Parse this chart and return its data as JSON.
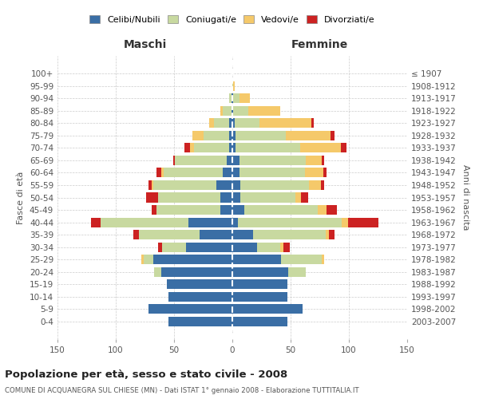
{
  "age_groups": [
    "100+",
    "95-99",
    "90-94",
    "85-89",
    "80-84",
    "75-79",
    "70-74",
    "65-69",
    "60-64",
    "55-59",
    "50-54",
    "45-49",
    "40-44",
    "35-39",
    "30-34",
    "25-29",
    "20-24",
    "15-19",
    "10-14",
    "5-9",
    "0-4"
  ],
  "birth_years": [
    "≤ 1907",
    "1908-1912",
    "1913-1917",
    "1918-1922",
    "1923-1927",
    "1928-1932",
    "1933-1937",
    "1938-1942",
    "1943-1947",
    "1948-1952",
    "1953-1957",
    "1958-1962",
    "1963-1967",
    "1968-1972",
    "1973-1977",
    "1978-1982",
    "1983-1987",
    "1988-1992",
    "1993-1997",
    "1998-2002",
    "2003-2007"
  ],
  "colors": {
    "celibe": "#3a6ea5",
    "coniugato": "#c8d9a0",
    "vedovo": "#f5c96a",
    "divorziato": "#cc2222"
  },
  "maschi": {
    "celibe": [
      0,
      0,
      1,
      1,
      3,
      3,
      3,
      5,
      8,
      14,
      10,
      10,
      38,
      28,
      40,
      68,
      61,
      56,
      55,
      72,
      55
    ],
    "coniugato": [
      0,
      0,
      2,
      7,
      13,
      22,
      30,
      44,
      51,
      54,
      54,
      55,
      75,
      52,
      20,
      8,
      6,
      0,
      0,
      0,
      0
    ],
    "vedovo": [
      0,
      0,
      0,
      2,
      4,
      9,
      3,
      0,
      2,
      1,
      0,
      0,
      0,
      0,
      0,
      2,
      0,
      0,
      0,
      0,
      0
    ],
    "divorziato": [
      0,
      0,
      0,
      0,
      0,
      0,
      5,
      2,
      4,
      3,
      10,
      4,
      8,
      5,
      4,
      0,
      0,
      0,
      0,
      0,
      0
    ]
  },
  "femmine": {
    "nubile": [
      0,
      0,
      1,
      1,
      2,
      3,
      3,
      6,
      6,
      7,
      7,
      10,
      5,
      18,
      21,
      42,
      48,
      47,
      47,
      60,
      47
    ],
    "coniugata": [
      0,
      1,
      5,
      13,
      21,
      43,
      55,
      57,
      56,
      59,
      47,
      63,
      89,
      62,
      20,
      35,
      15,
      0,
      0,
      0,
      0
    ],
    "vedova": [
      0,
      1,
      9,
      27,
      45,
      38,
      35,
      14,
      16,
      10,
      5,
      8,
      5,
      3,
      3,
      2,
      0,
      0,
      0,
      0,
      0
    ],
    "divorziata": [
      0,
      0,
      0,
      0,
      2,
      4,
      5,
      2,
      3,
      3,
      6,
      9,
      26,
      5,
      5,
      0,
      0,
      0,
      0,
      0,
      0
    ]
  },
  "xlim": 150,
  "title": "Popolazione per età, sesso e stato civile - 2008",
  "subtitle": "COMUNE DI ACQUANEGRA SUL CHIESE (MN) - Dati ISTAT 1° gennaio 2008 - Elaborazione TUTTITALIA.IT",
  "ylabel_left": "Fasce di età",
  "ylabel_right": "Anni di nascita",
  "xlabel_left": "Maschi",
  "xlabel_right": "Femmine",
  "legend_labels": [
    "Celibi/Nubili",
    "Coniugati/e",
    "Vedovi/e",
    "Divorziati/e"
  ],
  "background_color": "#ffffff",
  "grid_color": "#cccccc"
}
